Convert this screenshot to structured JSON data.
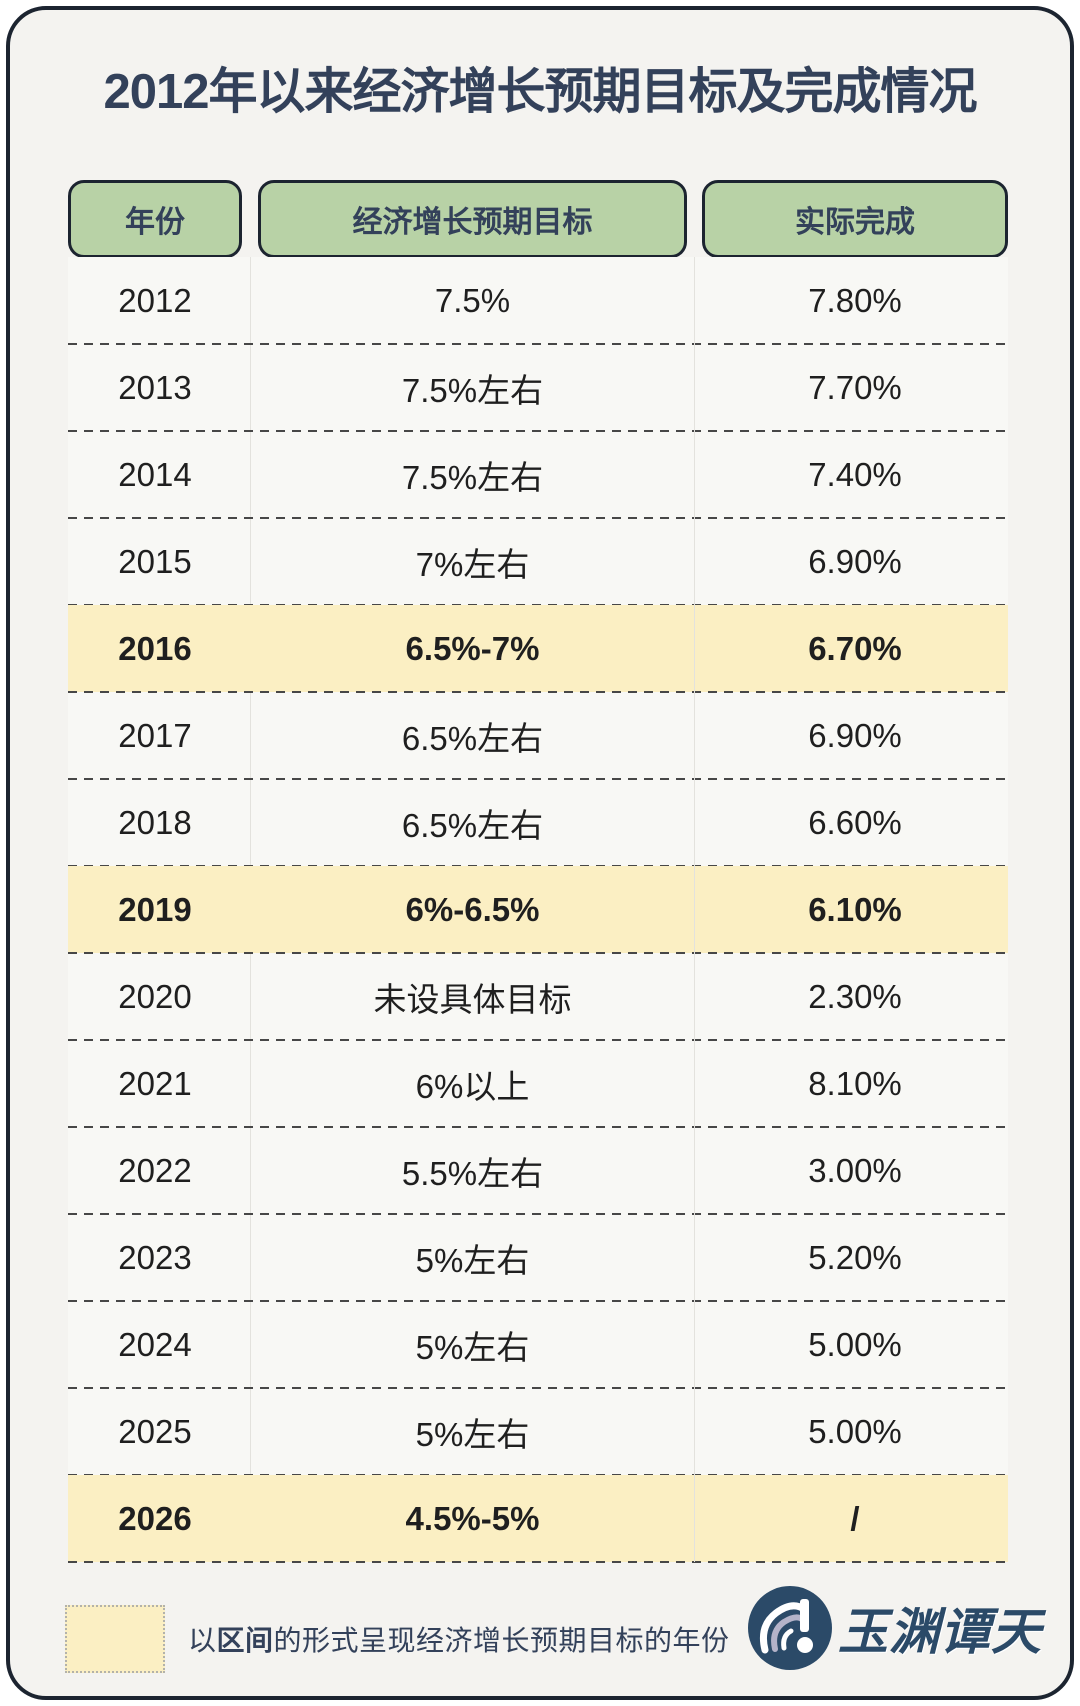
{
  "title": "2012年以来经济增长预期目标及完成情况",
  "table": {
    "columns": [
      "年份",
      "经济增长预期目标",
      "实际完成"
    ],
    "rows": [
      {
        "year": "2012",
        "target": "7.5%",
        "actual": "7.80%",
        "highlight": false
      },
      {
        "year": "2013",
        "target": "7.5%左右",
        "actual": "7.70%",
        "highlight": false
      },
      {
        "year": "2014",
        "target": "7.5%左右",
        "actual": "7.40%",
        "highlight": false
      },
      {
        "year": "2015",
        "target": "7%左右",
        "actual": "6.90%",
        "highlight": false
      },
      {
        "year": "2016",
        "target": "6.5%-7%",
        "actual": "6.70%",
        "highlight": true
      },
      {
        "year": "2017",
        "target": "6.5%左右",
        "actual": "6.90%",
        "highlight": false
      },
      {
        "year": "2018",
        "target": "6.5%左右",
        "actual": "6.60%",
        "highlight": false
      },
      {
        "year": "2019",
        "target": "6%-6.5%",
        "actual": "6.10%",
        "highlight": true
      },
      {
        "year": "2020",
        "target": "未设具体目标",
        "actual": "2.30%",
        "highlight": false
      },
      {
        "year": "2021",
        "target": "6%以上",
        "actual": "8.10%",
        "highlight": false
      },
      {
        "year": "2022",
        "target": "5.5%左右",
        "actual": "3.00%",
        "highlight": false
      },
      {
        "year": "2023",
        "target": "5%左右",
        "actual": "5.20%",
        "highlight": false
      },
      {
        "year": "2024",
        "target": "5%左右",
        "actual": "5.00%",
        "highlight": false
      },
      {
        "year": "2025",
        "target": "5%左右",
        "actual": "5.00%",
        "highlight": false
      },
      {
        "year": "2026",
        "target": "4.5%-5%",
        "actual": "/",
        "highlight": true
      }
    ]
  },
  "legend": {
    "prefix": "以",
    "bold": "区间",
    "suffix": "的形式呈现经济增长预期目标的年份"
  },
  "logo": {
    "name": "玉渊谭天"
  },
  "colors": {
    "navy": "#33415a",
    "text": "#1f1f1f",
    "green": "#b8d2a6",
    "yellow": "#fbefc3",
    "cardBg": "#f4f3f0",
    "bodyBg": "#f8f8f5",
    "border": "#1c2430",
    "dash": "#474747",
    "vline": "#e3e2dd",
    "logoNavy": "#2b4a68"
  },
  "chart_data": {
    "type": "table",
    "title": "2012年以来经济增长预期目标及完成情况",
    "columns": [
      "年份",
      "经济增长预期目标",
      "实际完成"
    ],
    "rows": [
      [
        "2012",
        "7.5%",
        "7.80%"
      ],
      [
        "2013",
        "7.5%左右",
        "7.70%"
      ],
      [
        "2014",
        "7.5%左右",
        "7.40%"
      ],
      [
        "2015",
        "7%左右",
        "6.90%"
      ],
      [
        "2016",
        "6.5%-7%",
        "6.70%"
      ],
      [
        "2017",
        "6.5%左右",
        "6.90%"
      ],
      [
        "2018",
        "6.5%左右",
        "6.60%"
      ],
      [
        "2019",
        "6%-6.5%",
        "6.10%"
      ],
      [
        "2020",
        "未设具体目标",
        "2.30%"
      ],
      [
        "2021",
        "6%以上",
        "8.10%"
      ],
      [
        "2022",
        "5.5%左右",
        "3.00%"
      ],
      [
        "2023",
        "5%左右",
        "5.20%"
      ],
      [
        "2024",
        "5%左右",
        "5.00%"
      ],
      [
        "2025",
        "5%左右",
        "5.00%"
      ],
      [
        "2026",
        "4.5%-5%",
        "/"
      ]
    ],
    "highlighted_rows": [
      "2016",
      "2019",
      "2026"
    ],
    "legend_note": "以区间的形式呈现经济增长预期目标的年份",
    "source_brand": "玉渊谭天"
  }
}
